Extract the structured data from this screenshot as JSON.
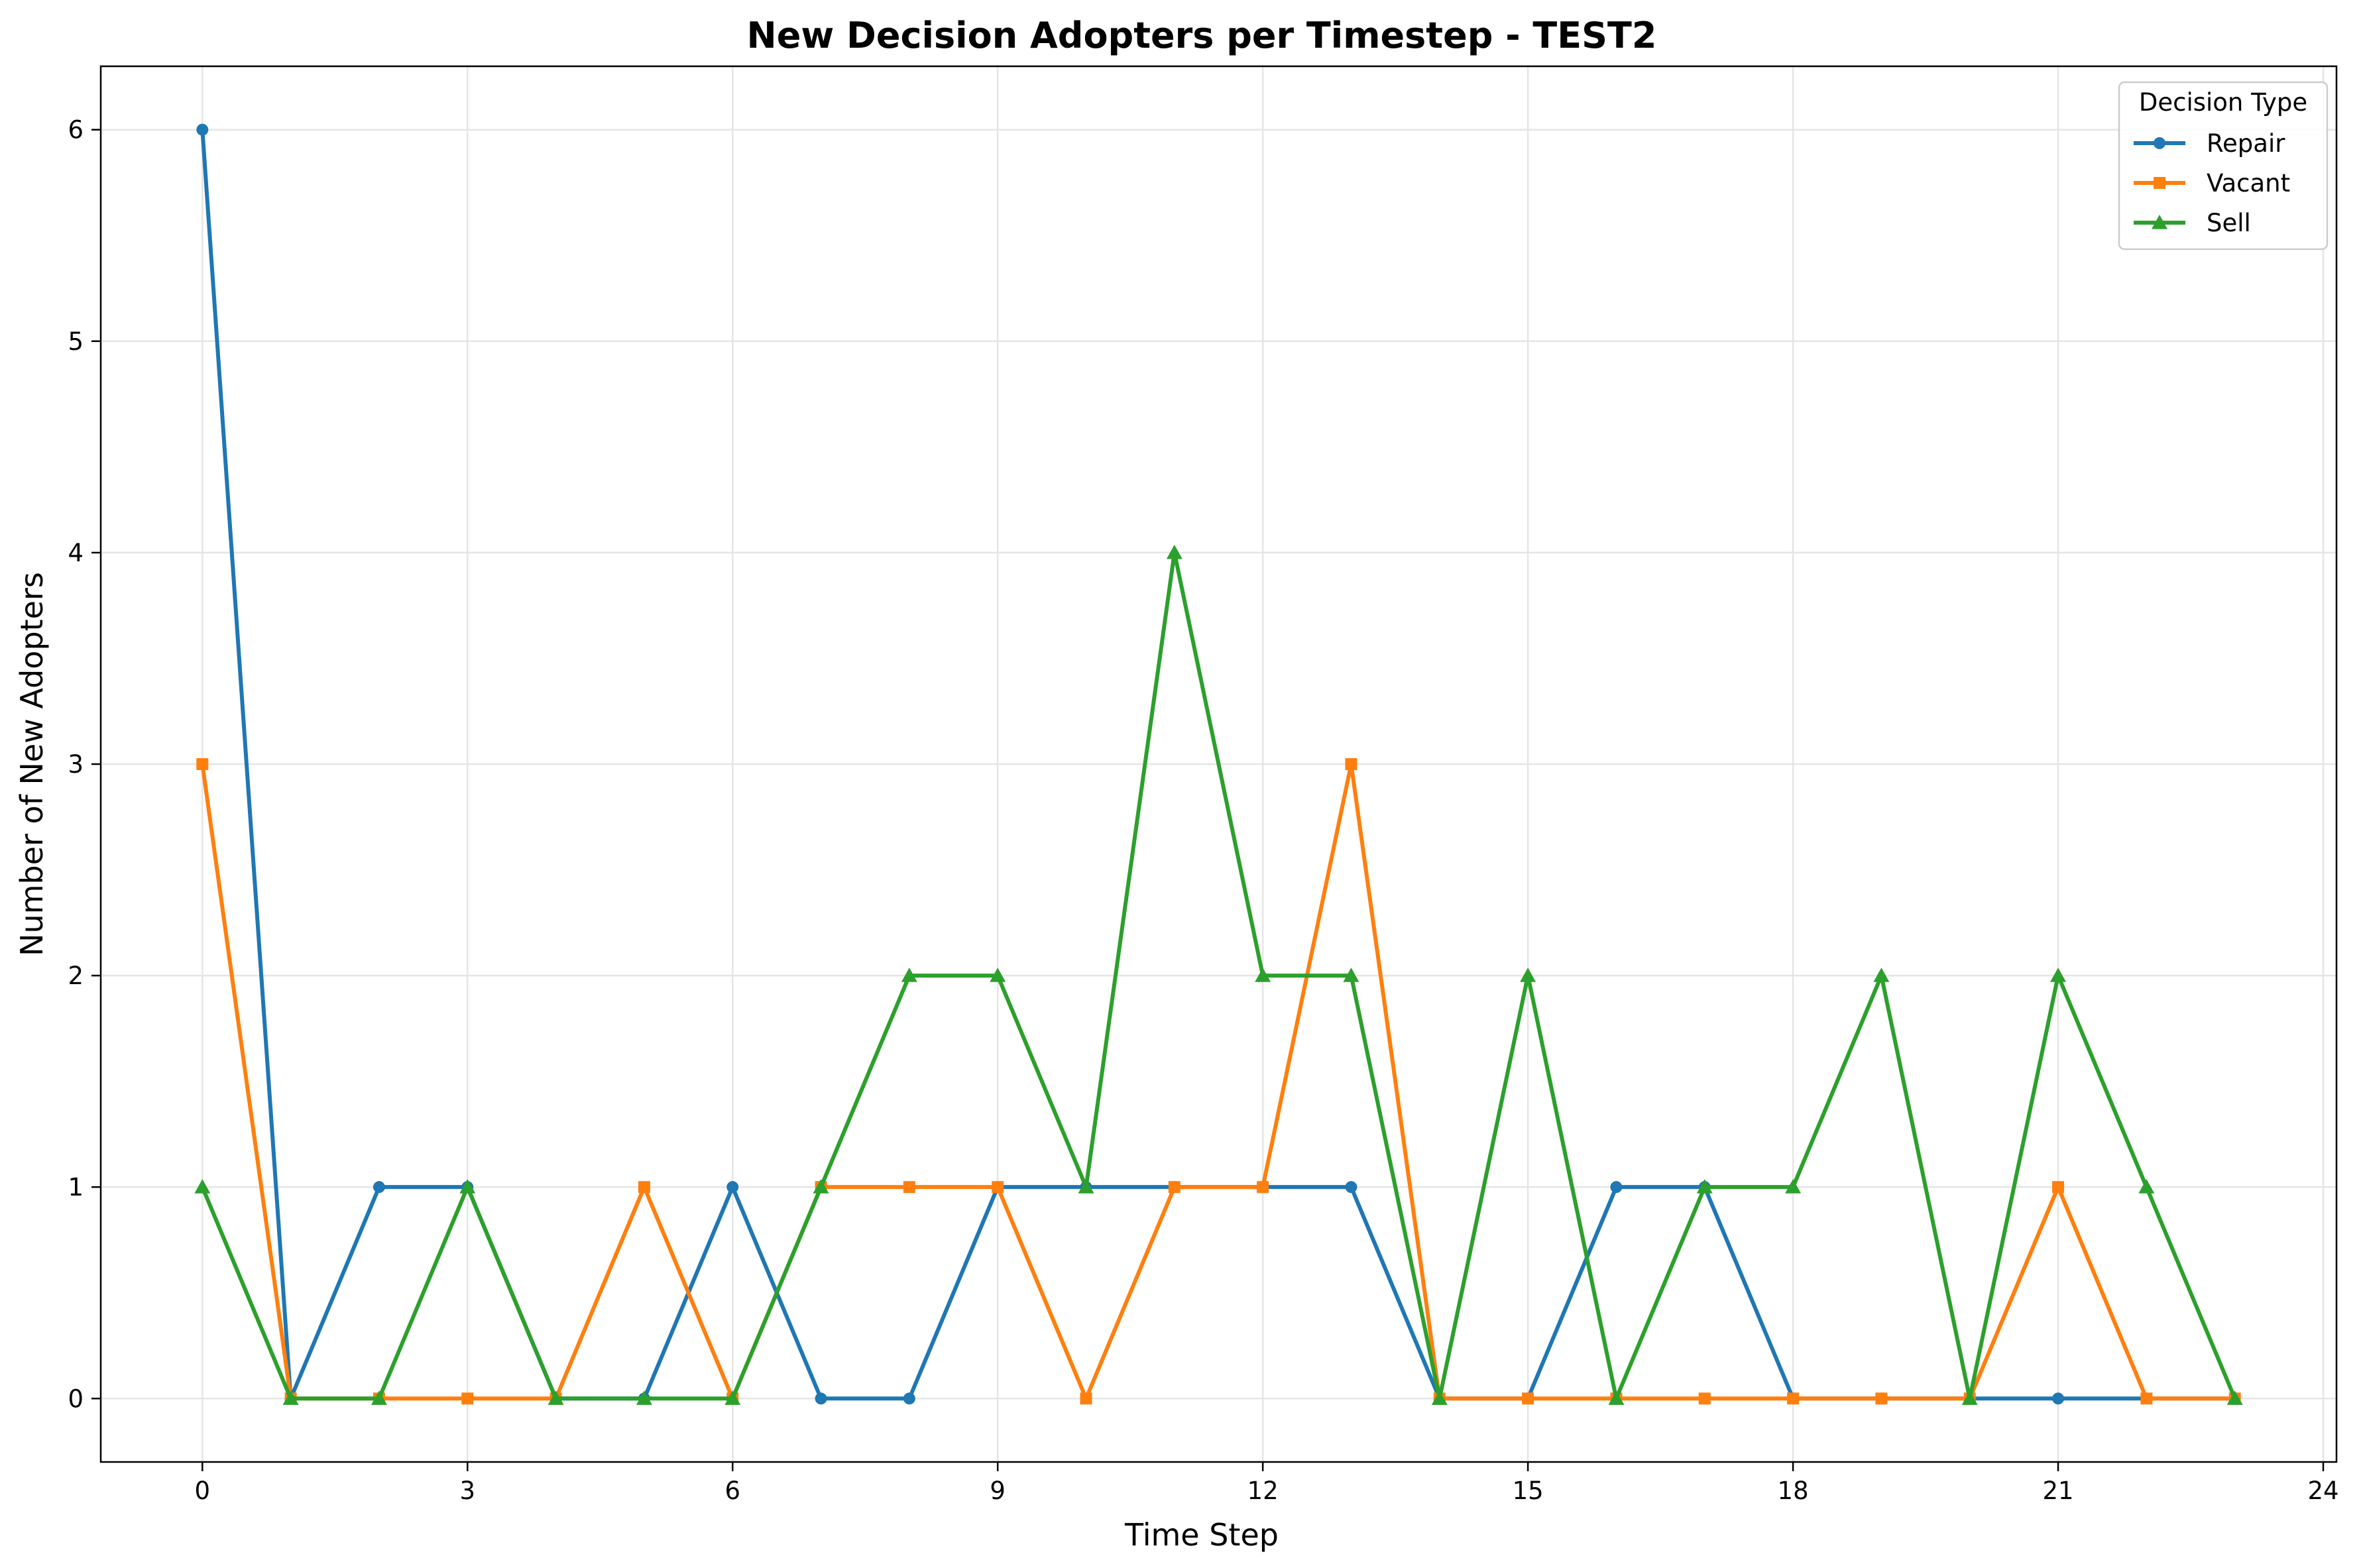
{
  "chart_data": {
    "type": "line",
    "title": "New Decision Adopters per Timestep - TEST2",
    "xlabel": "Time Step",
    "ylabel": "Number of New Adopters",
    "x": [
      0,
      1,
      2,
      3,
      4,
      5,
      6,
      7,
      8,
      9,
      10,
      11,
      12,
      13,
      14,
      15,
      16,
      17,
      18,
      19,
      20,
      21,
      22,
      23
    ],
    "xlim": [
      -1.15,
      24.15
    ],
    "ylim": [
      -0.3,
      6.3
    ],
    "xticks": [
      0,
      3,
      6,
      9,
      12,
      15,
      18,
      21,
      24
    ],
    "yticks": [
      0,
      1,
      2,
      3,
      4,
      5,
      6
    ],
    "grid": true,
    "legend": {
      "title": "Decision Type",
      "position": "top-right"
    },
    "series": [
      {
        "name": "Repair",
        "color": "#1f77b4",
        "marker": "circle",
        "values": [
          6,
          0,
          1,
          1,
          0,
          0,
          1,
          0,
          0,
          1,
          1,
          1,
          1,
          1,
          0,
          0,
          1,
          1,
          0,
          0,
          0,
          0,
          0,
          0
        ]
      },
      {
        "name": "Vacant",
        "color": "#ff7f0e",
        "marker": "square",
        "values": [
          3,
          0,
          0,
          0,
          0,
          1,
          0,
          1,
          1,
          1,
          0,
          1,
          1,
          3,
          0,
          0,
          0,
          0,
          0,
          0,
          0,
          1,
          0,
          0
        ]
      },
      {
        "name": "Sell",
        "color": "#2ca02c",
        "marker": "triangle",
        "values": [
          1,
          0,
          0,
          1,
          0,
          0,
          0,
          1,
          2,
          2,
          1,
          4,
          2,
          2,
          0,
          2,
          0,
          1,
          1,
          2,
          0,
          2,
          1,
          0
        ]
      }
    ]
  }
}
